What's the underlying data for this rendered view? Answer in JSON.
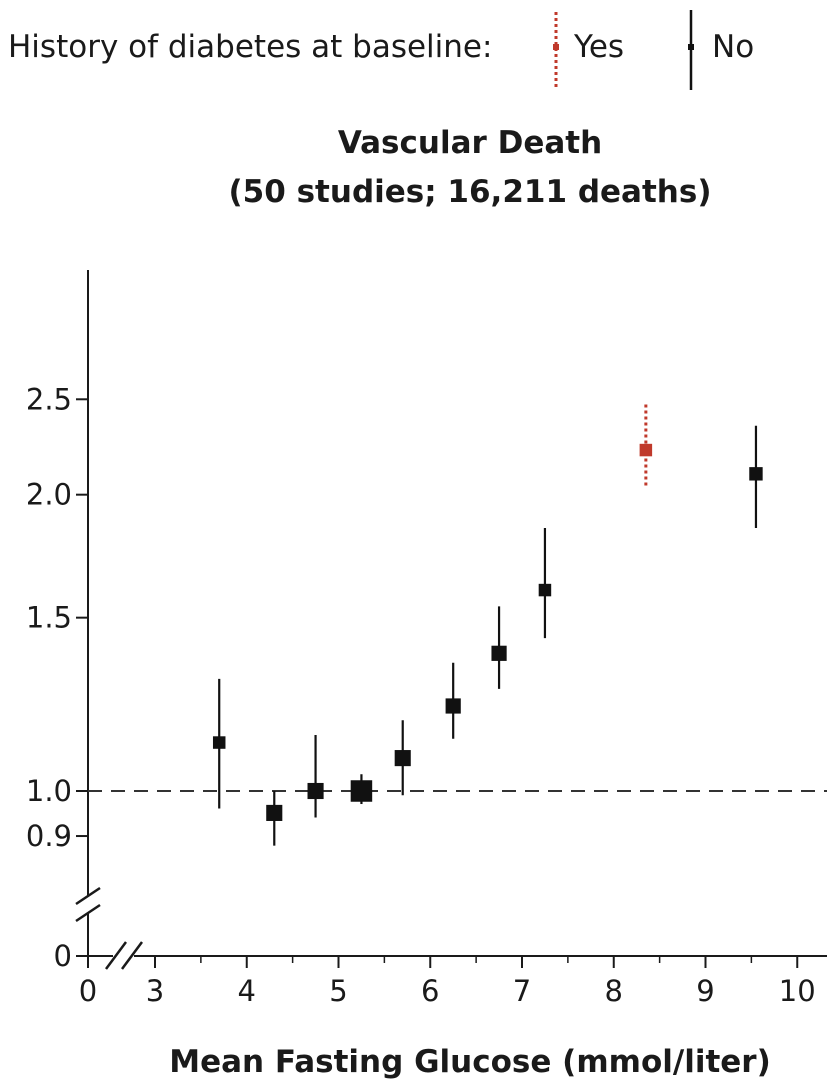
{
  "legend": {
    "prefix": "History of diabetes at baseline:",
    "items": [
      {
        "label": "Yes",
        "color": "#c0392b",
        "style": "dotted"
      },
      {
        "label": "No",
        "color": "#111111",
        "style": "solid"
      }
    ]
  },
  "chart_data": {
    "type": "scatter",
    "title": "Vascular Death",
    "subtitle": "(50 studies; 16,211 deaths)",
    "xlabel": "Mean Fasting Glucose (mmol/liter)",
    "ylabel": "",
    "x_ticks": [
      "0",
      "3",
      "4",
      "5",
      "6",
      "7",
      "8",
      "9",
      "10"
    ],
    "y_ticks": [
      "0",
      "0.9",
      "1.0",
      "1.5",
      "2.0",
      "2.5"
    ],
    "x_axis_break": true,
    "y_axis_break": true,
    "y_scale": "log",
    "xlim": [
      3,
      10.1
    ],
    "ylim": [
      0.9,
      2.5
    ],
    "reference_line": {
      "y": 1.0,
      "style": "dashed"
    },
    "series": [
      {
        "name": "No",
        "color": "#111111",
        "style": "solid",
        "points": [
          {
            "x": 3.7,
            "y": 1.12,
            "lo": 0.96,
            "hi": 1.3,
            "weight": 0.5
          },
          {
            "x": 4.3,
            "y": 0.95,
            "lo": 0.88,
            "hi": 1.0,
            "weight": 0.9
          },
          {
            "x": 4.75,
            "y": 1.0,
            "lo": 0.94,
            "hi": 1.14,
            "weight": 0.9
          },
          {
            "x": 5.25,
            "y": 1.0,
            "lo": 0.97,
            "hi": 1.04,
            "weight": 1.5
          },
          {
            "x": 5.7,
            "y": 1.08,
            "lo": 0.99,
            "hi": 1.18,
            "weight": 0.9
          },
          {
            "x": 6.25,
            "y": 1.22,
            "lo": 1.13,
            "hi": 1.35,
            "weight": 0.8
          },
          {
            "x": 6.75,
            "y": 1.38,
            "lo": 1.27,
            "hi": 1.54,
            "weight": 0.8
          },
          {
            "x": 7.25,
            "y": 1.6,
            "lo": 1.43,
            "hi": 1.85,
            "weight": 0.5
          },
          {
            "x": 9.55,
            "y": 2.1,
            "lo": 1.85,
            "hi": 2.35,
            "weight": 0.6
          }
        ]
      },
      {
        "name": "Yes",
        "color": "#c0392b",
        "style": "dotted",
        "points": [
          {
            "x": 8.35,
            "y": 2.22,
            "lo": 2.03,
            "hi": 2.47,
            "weight": 0.5
          }
        ]
      }
    ]
  }
}
